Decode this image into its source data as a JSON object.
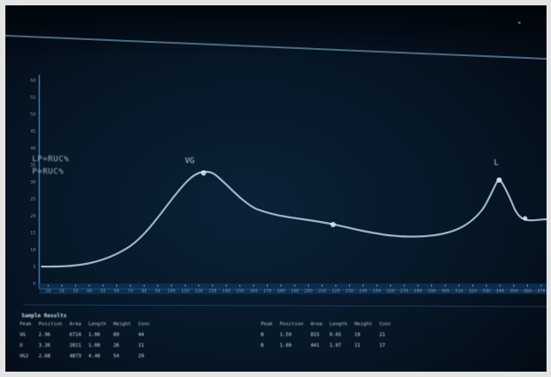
{
  "app": {
    "name": ""
  },
  "chart": {
    "legend": [
      "LP=RUC%",
      "P=RUC%"
    ],
    "peak_labels": [
      "VG",
      "L"
    ],
    "x_tick_labels": [
      "10",
      "20",
      "30",
      "40",
      "50",
      "60",
      "70",
      "80",
      "90",
      "100",
      "110",
      "120",
      "130",
      "140",
      "150",
      "160",
      "170",
      "180",
      "190",
      "200",
      "210",
      "220",
      "230",
      "240",
      "250",
      "260",
      "270",
      "280",
      "290",
      "300",
      "310",
      "320",
      "330",
      "340",
      "350",
      "360",
      "370"
    ],
    "y_tick_labels": [
      "60",
      "55",
      "50",
      "45",
      "40",
      "35",
      "30",
      "25",
      "20",
      "15",
      "10",
      "5",
      "0"
    ],
    "colors": {
      "curve": "#a8c4d8",
      "axis": "#2f5d86",
      "grid": "#1b3f63",
      "text": "#d7e6f1"
    }
  },
  "results": {
    "title": "Sample Results",
    "table1": {
      "headers": [
        "Peak",
        "Position",
        "Area",
        "Length",
        "Height",
        "Conc"
      ],
      "rows": [
        [
          "VG",
          "2.96",
          "6724",
          "1.06",
          "89",
          "44"
        ],
        [
          "U",
          "3.36",
          "2811",
          "1.00",
          "26",
          "11"
        ],
        [
          "VG2",
          "2.68",
          "4873",
          "4.40",
          "54",
          "29"
        ]
      ]
    },
    "table2": {
      "headers": [
        "Peak",
        "Position",
        "Area",
        "Length",
        "Height",
        "Conc"
      ],
      "rows": [
        [
          "B",
          "1.59",
          "815",
          "0.65",
          "19",
          "21"
        ],
        [
          "B",
          "1.09",
          "441",
          "1.07",
          "11",
          "17"
        ]
      ]
    }
  }
}
